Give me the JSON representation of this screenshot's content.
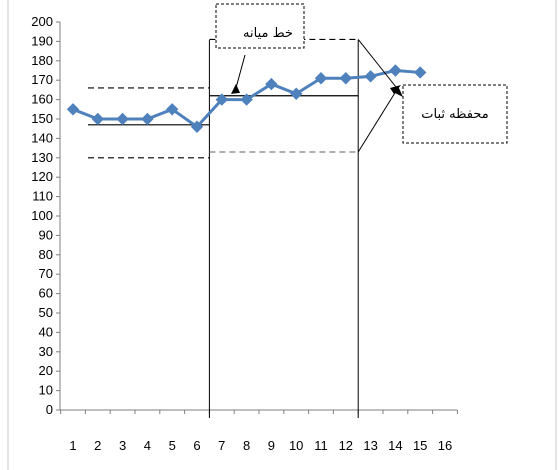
{
  "chart_data": {
    "type": "line",
    "title": "",
    "xlabel": "",
    "ylabel": "",
    "x": [
      1,
      2,
      3,
      4,
      5,
      6,
      7,
      8,
      9,
      10,
      11,
      12,
      13,
      14,
      15
    ],
    "x_ticks": [
      "1",
      "2",
      "3",
      "4",
      "5",
      "6",
      "7",
      "8",
      "9",
      "10",
      "11",
      "12",
      "13",
      "14",
      "15",
      "16"
    ],
    "y_ticks": [
      "0",
      "10",
      "20",
      "30",
      "40",
      "50",
      "60",
      "70",
      "80",
      "90",
      "100",
      "110",
      "120",
      "130",
      "140",
      "150",
      "160",
      "170",
      "180",
      "190",
      "200"
    ],
    "ylim": [
      0,
      200
    ],
    "series": [
      {
        "values": [
          155,
          150,
          150,
          150,
          155,
          146,
          160,
          160,
          168,
          163,
          171,
          171,
          172,
          175,
          174
        ],
        "color": "#4f81bd"
      }
    ],
    "phase_dividers_x": [
      6,
      12
    ],
    "phases": [
      {
        "from_x": 0.7,
        "to_x": 6,
        "center_line": 147,
        "upper_band": 166,
        "lower_band": 130
      },
      {
        "from_x": 6,
        "to_x": 12,
        "center_line": 162,
        "upper_band": 191,
        "lower_band": 133
      }
    ],
    "annotations": [
      {
        "text": "خط میانه",
        "points_to": "center-line"
      },
      {
        "text": "محفظه ثبات",
        "points_to": "stability-envelope"
      }
    ],
    "grid": false,
    "legend": "none"
  }
}
